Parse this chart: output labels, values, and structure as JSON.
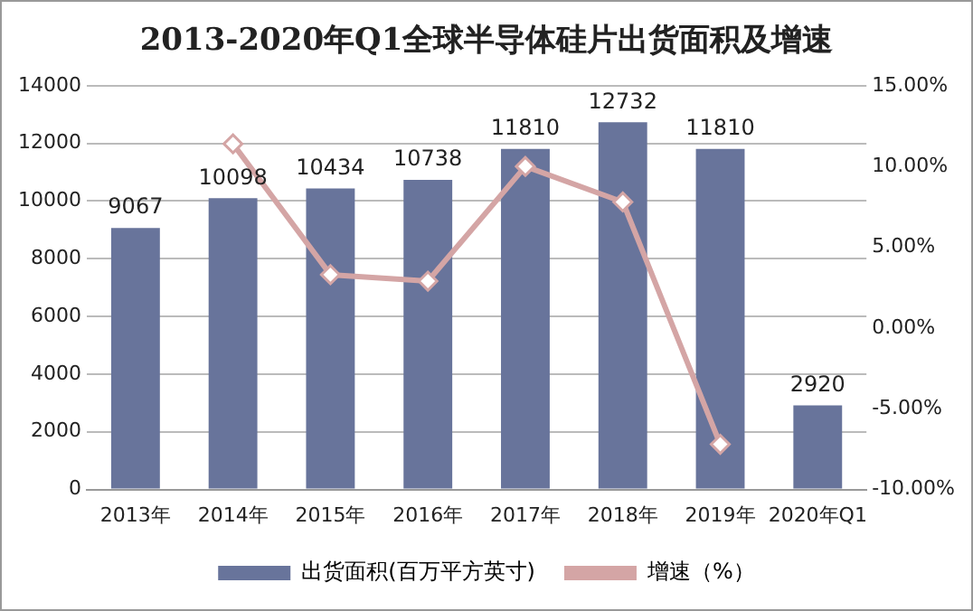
{
  "chart_data": {
    "type": "bar",
    "title": "2013-2020年Q1全球半导体硅片出货面积及增速",
    "categories": [
      "2013年",
      "2014年",
      "2015年",
      "2016年",
      "2017年",
      "2018年",
      "2019年",
      "2020年Q1"
    ],
    "series": [
      {
        "name": "出货面积(百万平方英寸)",
        "color": "#68749b",
        "values": [
          9067,
          10098,
          10434,
          10738,
          11810,
          12732,
          11810,
          2920
        ],
        "value_labels": [
          "9067",
          "10098",
          "10434",
          "10738",
          "11810",
          "12732",
          "11810",
          "2920"
        ]
      },
      {
        "name": "增速（%）",
        "type": "line",
        "axis": "y2",
        "color": "#d4a5a5",
        "marker": "diamond",
        "values": [
          null,
          11.4,
          3.3,
          2.9,
          10.0,
          7.8,
          -7.2,
          null
        ]
      }
    ],
    "ylim": [
      0,
      14000
    ],
    "yticks": [
      0,
      2000,
      4000,
      6000,
      8000,
      10000,
      12000,
      14000
    ],
    "y2lim": [
      -10,
      15
    ],
    "y2ticks": [
      {
        "value": -10,
        "label": "-10.00%"
      },
      {
        "value": -5,
        "label": "-5.00%"
      },
      {
        "value": 0,
        "label": "0.00%"
      },
      {
        "value": 5,
        "label": "5.00%"
      },
      {
        "value": 10,
        "label": "10.00%"
      },
      {
        "value": 15,
        "label": "15.00%"
      }
    ],
    "grid": "y",
    "legend": "bottom"
  }
}
